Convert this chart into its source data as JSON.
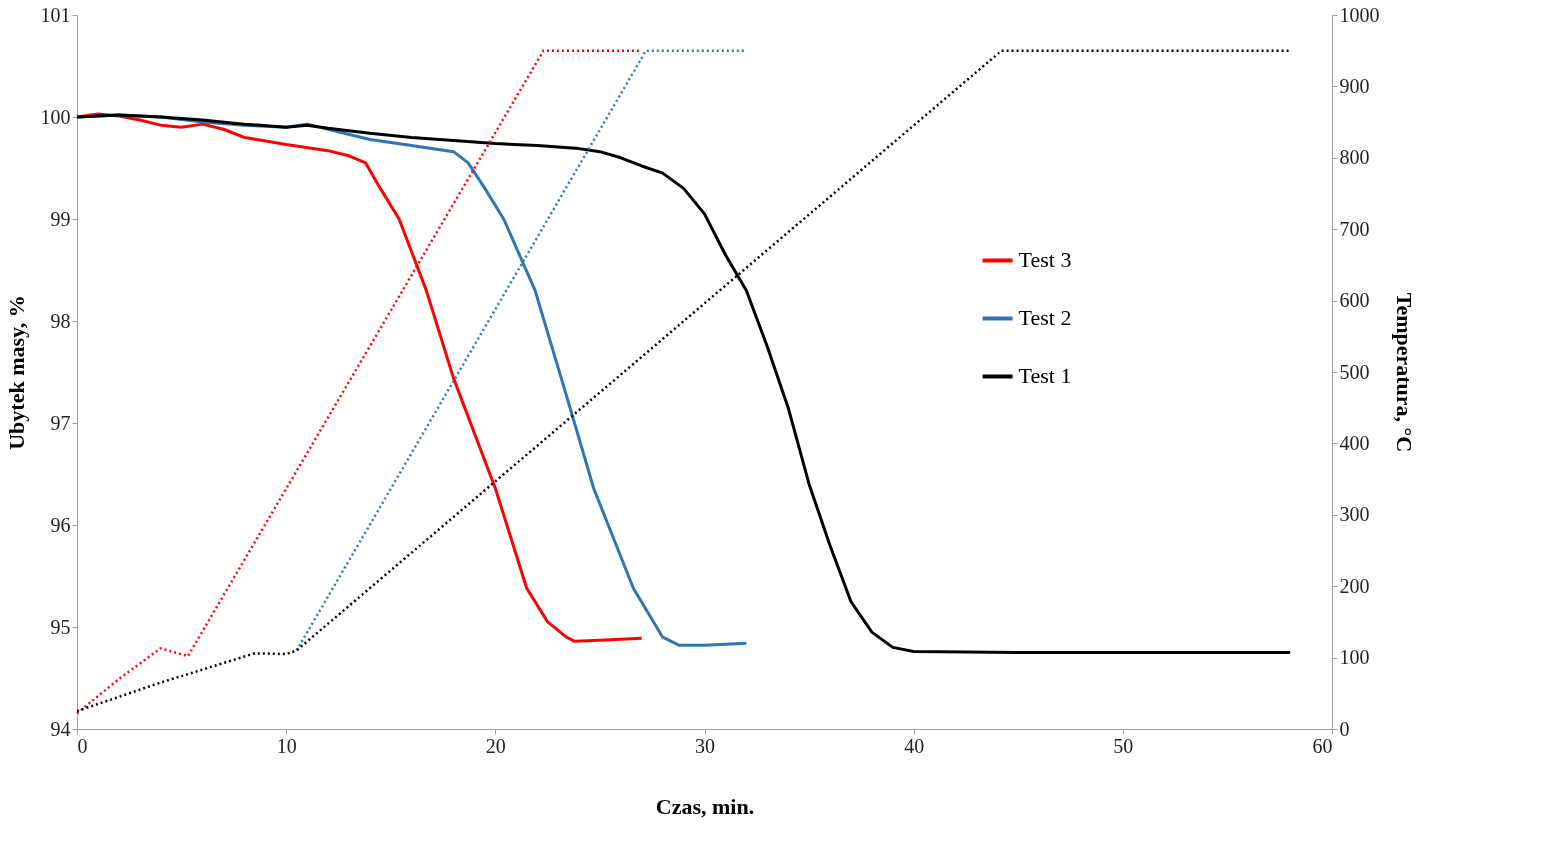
{
  "chart_data": {
    "type": "line",
    "xlabel": "Czas, min.",
    "ylabel": "Ubytek  masy, %",
    "y2label": "Temperatura, °C",
    "xlim": [
      0,
      60
    ],
    "xticks": [
      0,
      10,
      20,
      30,
      40,
      50,
      60
    ],
    "ylim": [
      94,
      101
    ],
    "yticks": [
      94,
      95,
      96,
      97,
      98,
      99,
      100,
      101
    ],
    "y2lim": [
      0,
      1000
    ],
    "y2ticks": [
      0,
      100,
      200,
      300,
      400,
      500,
      600,
      700,
      800,
      900,
      1000
    ],
    "grid": false,
    "legend": "right",
    "marker": "none",
    "series": [
      {
        "name": "Test 3",
        "color": "#ff0000",
        "line_style": "solid",
        "x": [
          0,
          1,
          2,
          3,
          4,
          5,
          6,
          7,
          8,
          10,
          12,
          13,
          13.8,
          14.5,
          15.4,
          16.7,
          18,
          19,
          20,
          21.5,
          22.5,
          23.4,
          23.8,
          25,
          27
        ],
        "values": [
          100,
          100.03,
          100.01,
          99.97,
          99.92,
          99.9,
          99.93,
          99.88,
          99.8,
          99.73,
          99.67,
          99.62,
          99.55,
          99.3,
          99.0,
          98.3,
          97.44,
          96.9,
          96.36,
          95.38,
          95.05,
          94.9,
          94.86,
          94.87,
          94.89
        ]
      },
      {
        "name": "Test 2",
        "color": "#2e75b6",
        "line_style": "solid",
        "x": [
          0,
          2,
          4,
          6,
          8,
          10,
          11,
          12,
          14,
          16,
          18,
          18.7,
          19.5,
          20.4,
          21.9,
          23.5,
          24.7,
          26.6,
          28,
          28.8,
          30,
          32
        ],
        "values": [
          100,
          100.02,
          100,
          99.95,
          99.92,
          99.9,
          99.93,
          99.88,
          99.78,
          99.72,
          99.66,
          99.55,
          99.3,
          99.0,
          98.3,
          97.2,
          96.36,
          95.38,
          94.9,
          94.82,
          94.82,
          94.84
        ]
      },
      {
        "name": "Test 1",
        "color": "#000000",
        "line_style": "solid",
        "x": [
          0,
          2,
          4,
          6,
          8,
          10,
          11,
          12,
          14,
          16,
          18,
          20,
          22,
          24,
          25,
          26,
          27,
          28,
          29,
          30,
          31,
          32,
          33,
          34,
          35,
          36,
          37,
          38,
          39,
          40,
          45,
          58
        ],
        "values": [
          100,
          100.02,
          100,
          99.97,
          99.93,
          99.9,
          99.92,
          99.89,
          99.84,
          99.8,
          99.77,
          99.74,
          99.72,
          99.69,
          99.66,
          99.6,
          99.52,
          99.45,
          99.3,
          99.05,
          98.65,
          98.3,
          97.75,
          97.15,
          96.4,
          95.8,
          95.25,
          94.95,
          94.8,
          94.76,
          94.75,
          94.75
        ]
      },
      {
        "color": "#ff0000",
        "line_style": "dotted",
        "axis": "y2",
        "x": [
          0,
          2,
          4,
          5.3,
          22.3,
          27
        ],
        "values": [
          22,
          70,
          113,
          102,
          950,
          950
        ]
      },
      {
        "color": "#2e75b6",
        "line_style": "dotted",
        "axis": "y2",
        "x": [
          10.5,
          27.2,
          32
        ],
        "values": [
          110,
          950,
          950
        ]
      },
      {
        "color": "#000000",
        "line_style": "dotted",
        "axis": "y2",
        "x": [
          0,
          4,
          8.5,
          10,
          10.5,
          44.2,
          58
        ],
        "values": [
          25,
          65,
          106,
          105,
          110,
          950,
          950
        ]
      }
    ]
  }
}
